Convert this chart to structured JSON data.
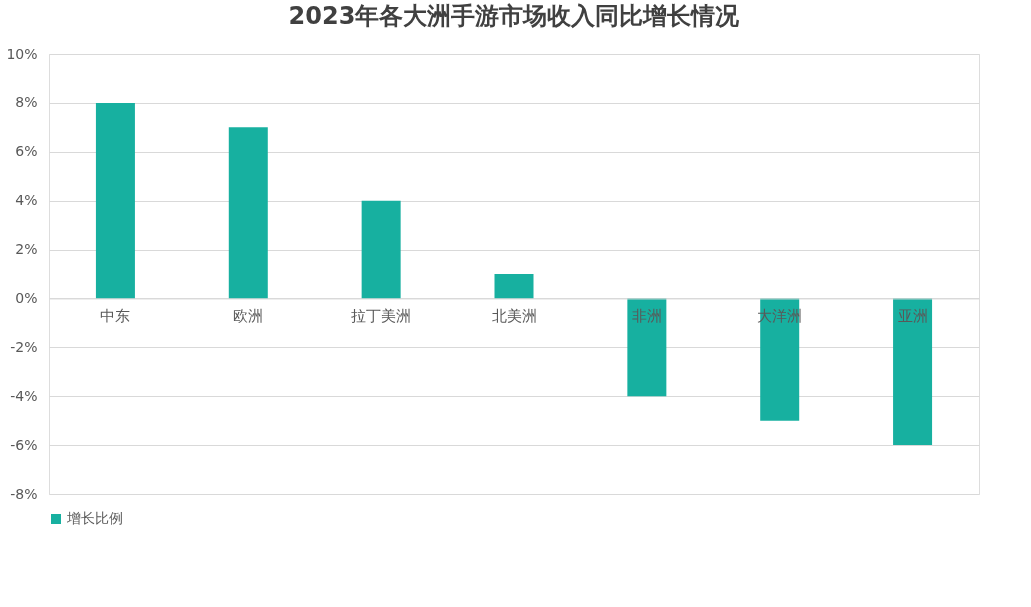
{
  "chart_data": {
    "type": "bar",
    "title": "2023年各大洲手游市场收入同比增长情况",
    "categories": [
      "中东",
      "欧洲",
      "拉丁美洲",
      "北美洲",
      "非洲",
      "大洋洲",
      "亚洲"
    ],
    "series": [
      {
        "name": "增长比例",
        "color": "#17b0a0",
        "values": [
          8,
          7,
          4,
          1,
          -4,
          -5,
          -6
        ]
      }
    ],
    "ylim": [
      -8,
      10
    ],
    "yticks": [
      {
        "value": -8,
        "label": "-8%"
      },
      {
        "value": -6,
        "label": "-6%"
      },
      {
        "value": -4,
        "label": "-4%"
      },
      {
        "value": -2,
        "label": "-2%"
      },
      {
        "value": 0,
        "label": "0%"
      },
      {
        "value": 2,
        "label": "2%"
      },
      {
        "value": 4,
        "label": "4%"
      },
      {
        "value": 6,
        "label": "6%"
      },
      {
        "value": 8,
        "label": "8%"
      },
      {
        "value": 10,
        "label": "10%"
      }
    ],
    "grid": "y",
    "legend": "bottom"
  }
}
